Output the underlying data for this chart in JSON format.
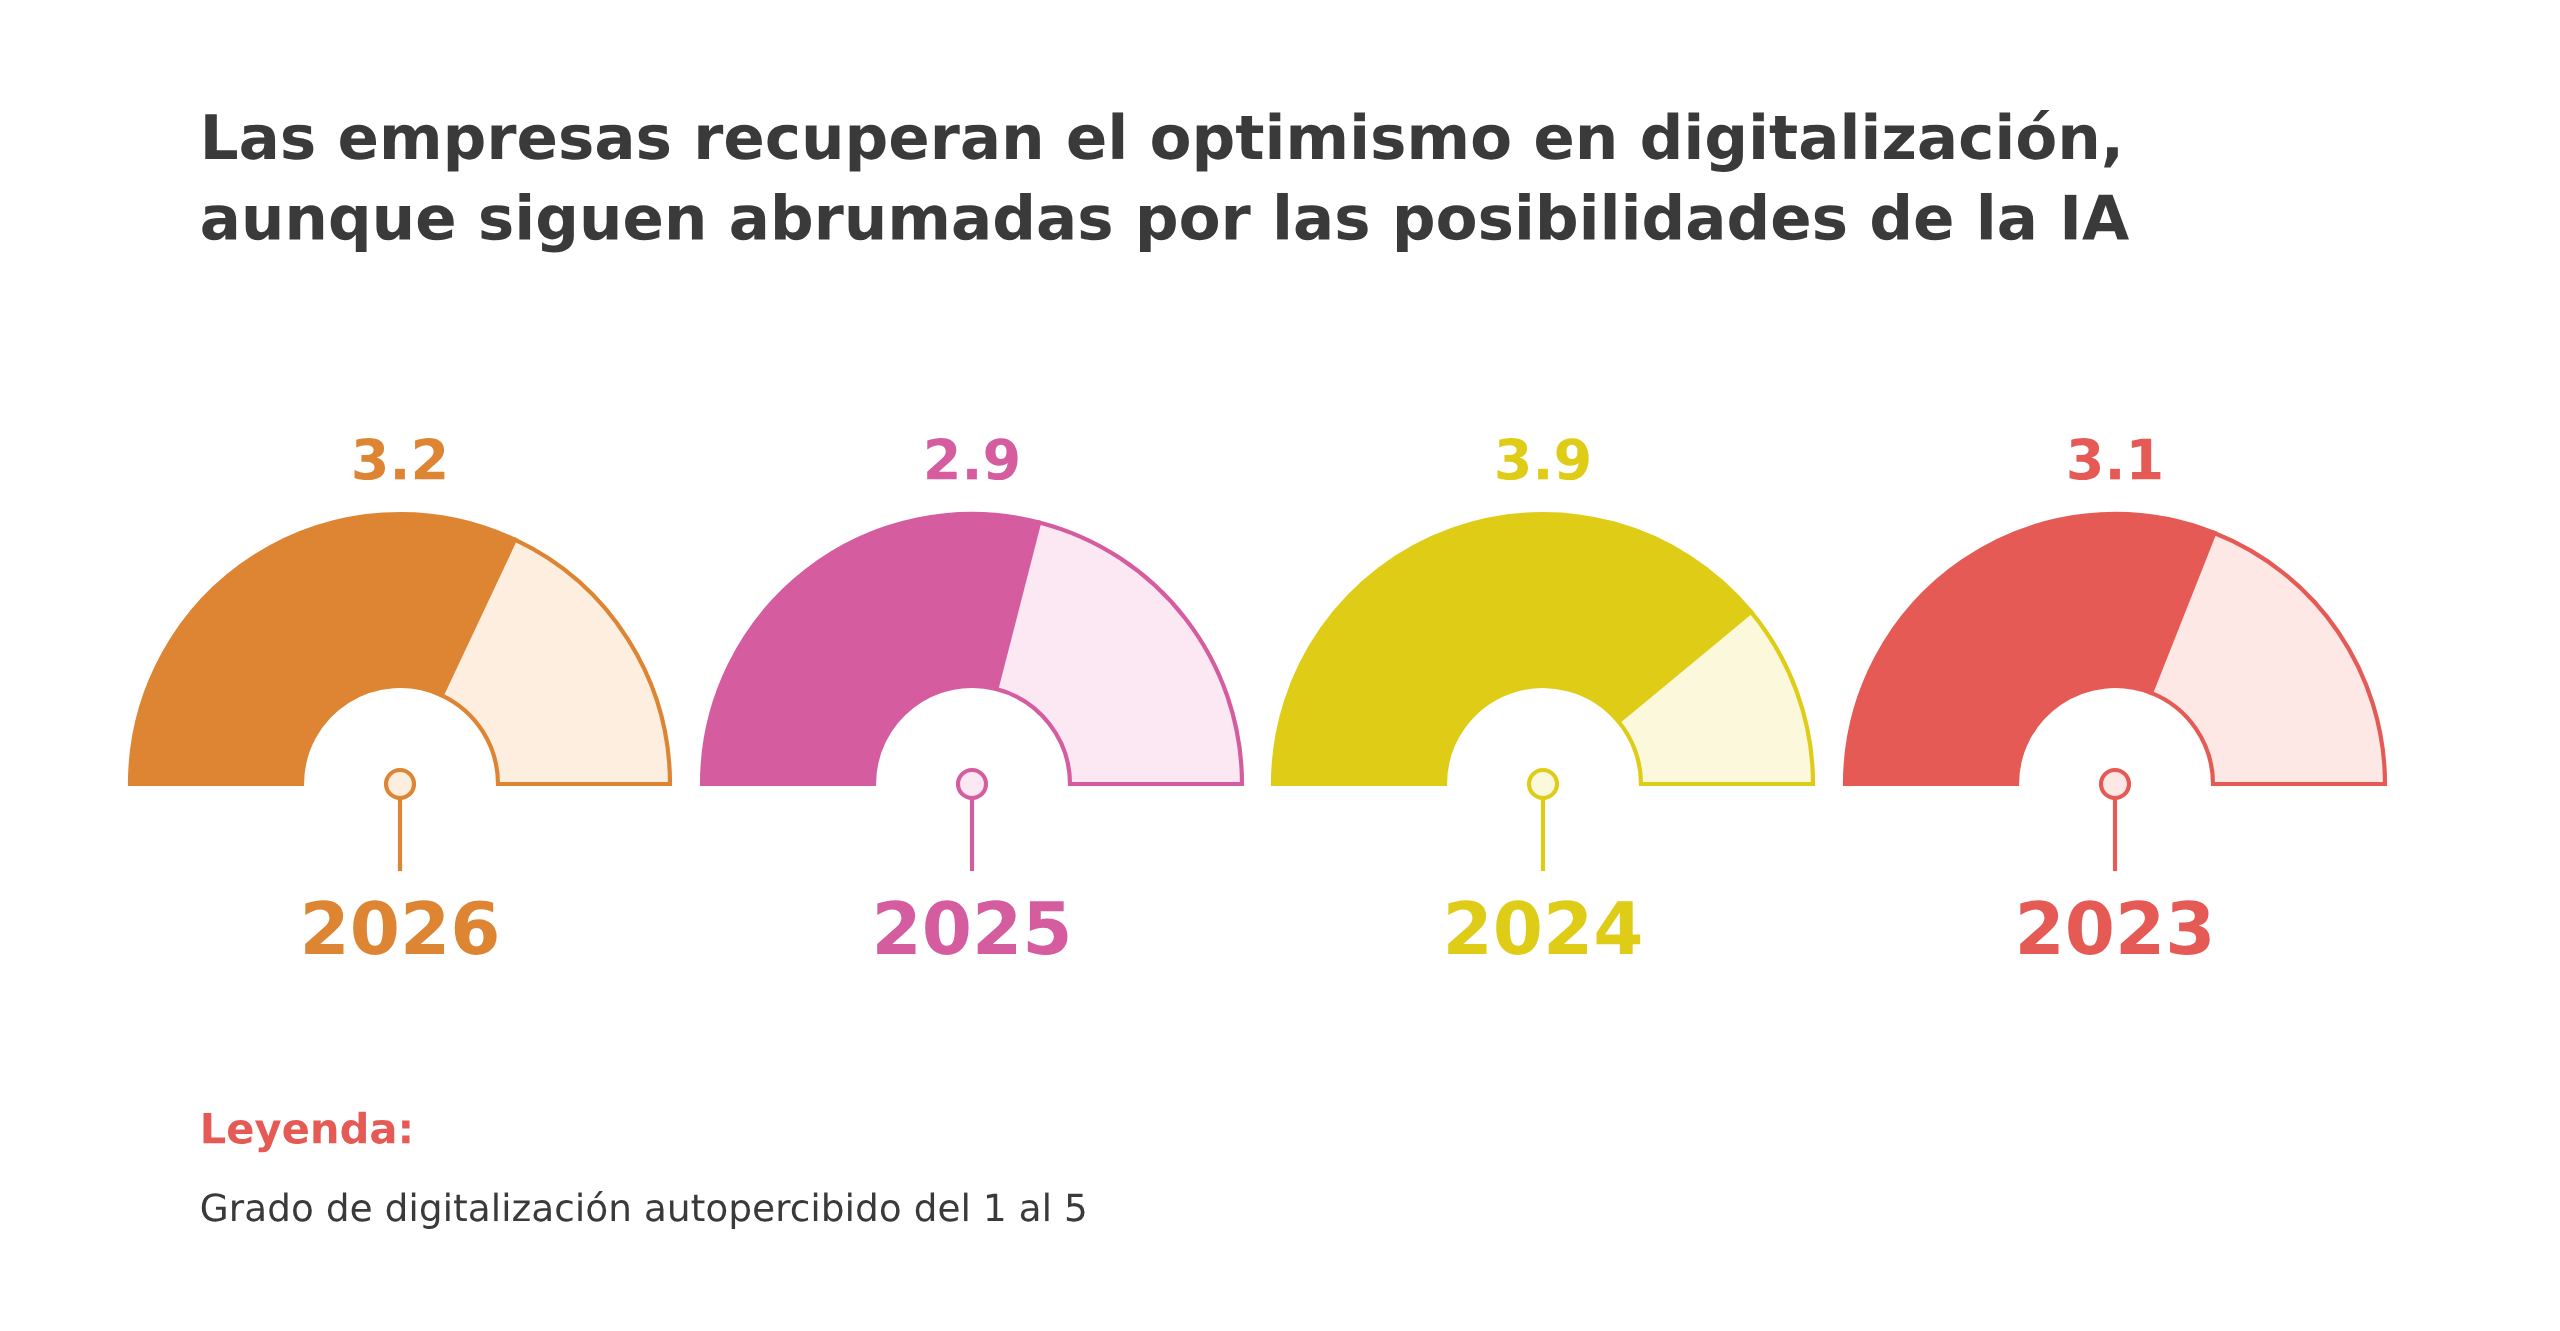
{
  "chart_data": [
    {
      "type": "donut",
      "title": "2026",
      "annotations": [
        "Las empresas recuperan el optimismo en digitalización,\naunque siguen abrumadas por las posibilidades de la IA",
        "Leyenda:",
        "Grado de digitalización autopercibido del 1 al 5"
      ],
      "categories": [
        null,
        null
      ],
      "values": [
        3.2,
        1.8
      ],
      "value_labels": [
        "3.2",
        null
      ],
      "colors": [
        "#dd8533",
        "#fdeee0"
      ]
    },
    {
      "type": "donut",
      "title": "2025",
      "categories": [
        null,
        null
      ],
      "values": [
        2.9,
        2.1
      ],
      "value_labels": [
        "2.9",
        null
      ],
      "colors": [
        "#d45c9f",
        "#fbe8f3"
      ]
    },
    {
      "type": "donut",
      "title": "2024",
      "categories": [
        null,
        null
      ],
      "values": [
        3.9,
        1.1
      ],
      "value_labels": [
        "3.9",
        null
      ],
      "colors": [
        "#dfcc17",
        "#fcf8dc"
      ]
    },
    {
      "type": "donut",
      "title": "2023",
      "categories": [
        null,
        null
      ],
      "values": [
        3.1,
        1.9
      ],
      "value_labels": [
        "3.1",
        null
      ],
      "colors": [
        "#e55a54",
        "#fde8e6"
      ]
    }
  ]
}
